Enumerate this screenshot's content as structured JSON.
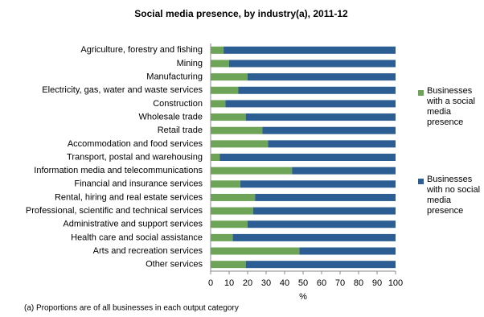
{
  "chart_data": {
    "type": "stacked-bar-horizontal",
    "title": "Social media presence, by industry(a),  2011-12",
    "categories": [
      "Agriculture, forestry and fishing",
      "Mining",
      "Manufacturing",
      "Electricity, gas, water and waste services",
      "Construction",
      "Wholesale trade",
      "Retail trade",
      "Accommodation and food services",
      "Transport, postal and warehousing",
      "Information media and telecommunications",
      "Financial and insurance services",
      "Rental, hiring and real estate services",
      "Professional, scientific and technical services",
      "Administrative and support services",
      "Health care and social assistance",
      "Arts and recreation services",
      "Other services"
    ],
    "series": [
      {
        "name": "Businesses with a social media presence",
        "color": "#6ea457",
        "values": [
          7,
          10,
          20,
          15,
          8,
          19,
          28,
          31,
          5,
          44,
          16,
          24,
          23,
          20,
          12,
          48,
          19
        ]
      },
      {
        "name": "Businesses with no social media presence",
        "color": "#2c5d93",
        "values": [
          93,
          90,
          80,
          85,
          92,
          81,
          72,
          69,
          95,
          56,
          84,
          76,
          77,
          80,
          88,
          52,
          81
        ]
      }
    ],
    "xlabel": "%",
    "xlim": [
      0,
      100
    ],
    "xticks": [
      0,
      10,
      20,
      30,
      40,
      50,
      60,
      70,
      80,
      90,
      100
    ],
    "footnote": "(a) Proportions are of all businesses in each output category",
    "legend_position": "right"
  }
}
